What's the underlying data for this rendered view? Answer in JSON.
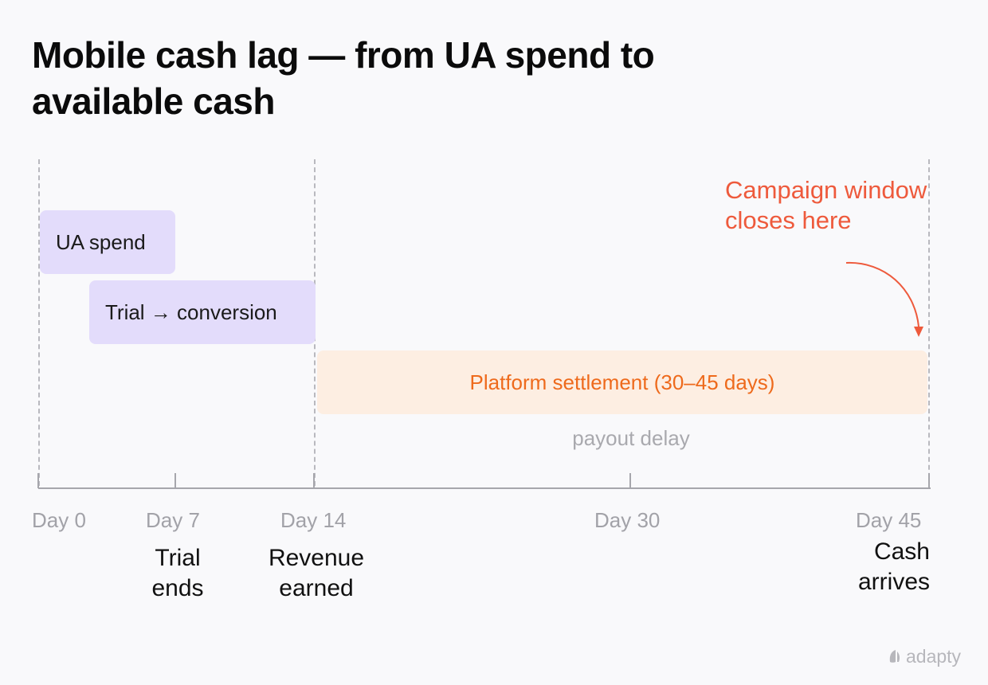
{
  "title": "Mobile cash lag — from UA spend to available cash",
  "bars": {
    "ua_spend": "UA spend",
    "trial_conversion": "Trial → conversion",
    "settlement": "Platform settlement (30–45 days)",
    "payout_delay": "payout delay"
  },
  "axis": {
    "ticks": [
      "Day 0",
      "Day 7",
      "Day 14",
      "Day 30",
      "Day 45"
    ],
    "milestones": {
      "day7": "Trial\nends",
      "day14": "Revenue\nearned",
      "day45": "Cash\narrives"
    }
  },
  "callout": "Campaign window closes here",
  "colors": {
    "background": "#f9f9fb",
    "purple_bar": "#e3dcfb",
    "settlement_bar": "#fdeee2",
    "settlement_text": "#ee6a1c",
    "callout": "#ee5a3c",
    "muted_text": "#a2a2a8"
  },
  "brand": {
    "name": "adapty",
    "icon": "adapty-logo-icon"
  }
}
